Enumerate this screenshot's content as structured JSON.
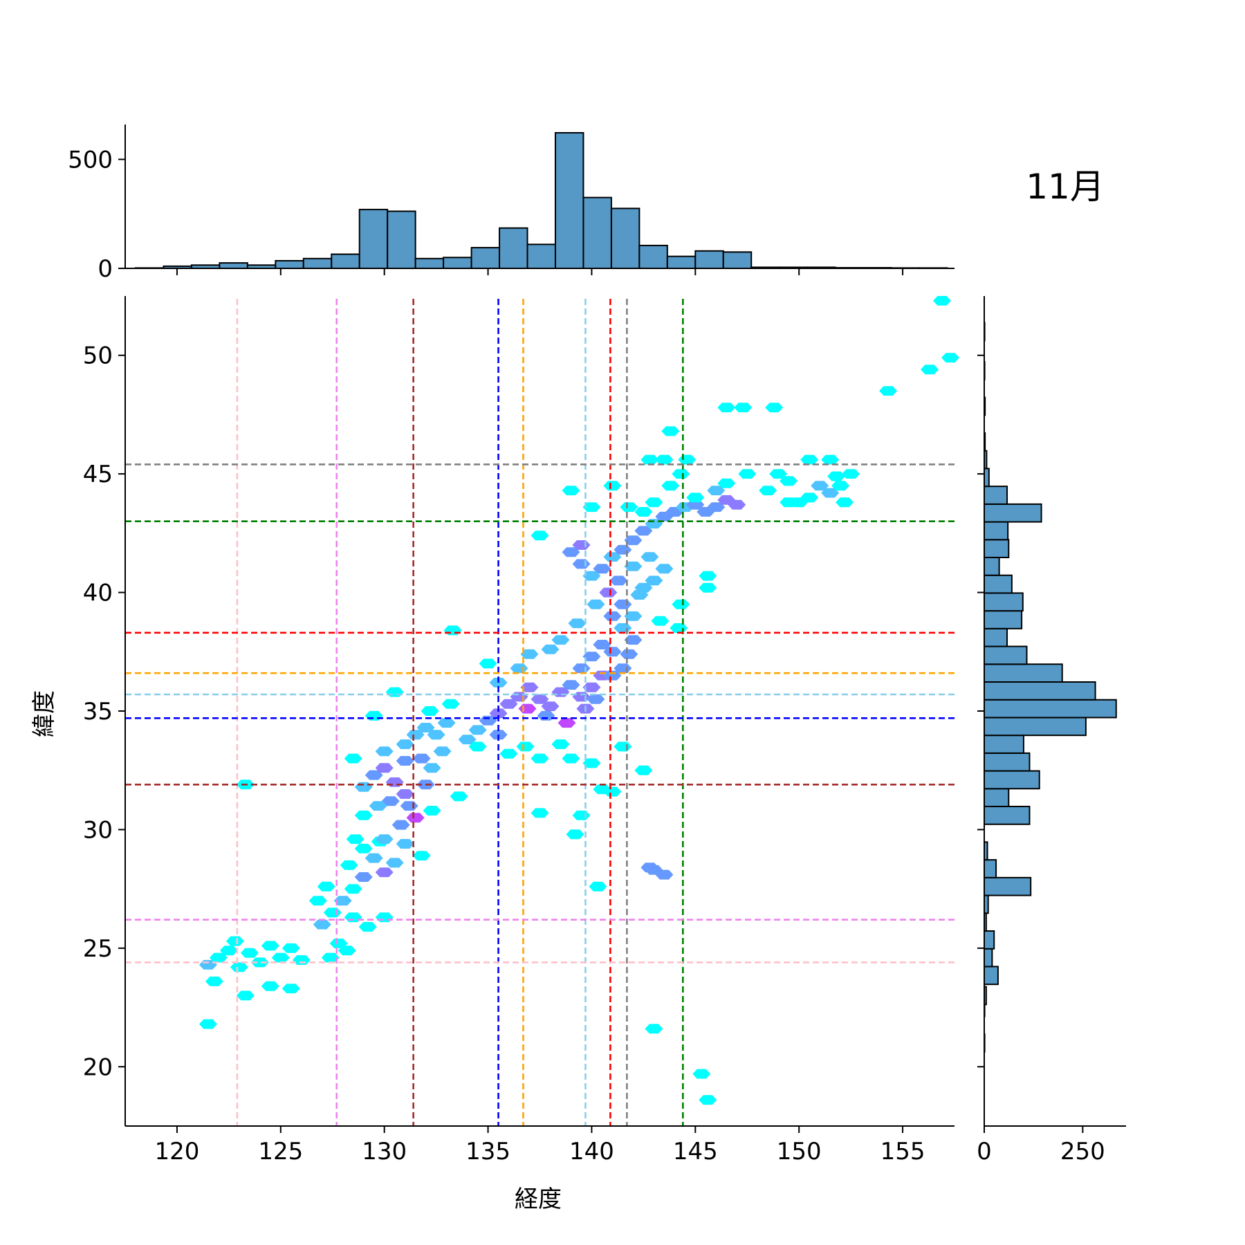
{
  "title": "11月",
  "chart_data": {
    "type": "scatter",
    "style": "hexbin joint plot with marginal histograms",
    "title": "11月",
    "xlabel": "経度",
    "ylabel": "緯度",
    "xlim": [
      117.5,
      157.5
    ],
    "ylim": [
      17.5,
      52.5
    ],
    "xticks": [
      "120",
      "125",
      "130",
      "135",
      "140",
      "145",
      "150",
      "155"
    ],
    "yticks": [
      "20",
      "25",
      "30",
      "35",
      "40",
      "45",
      "50"
    ],
    "top_hist": {
      "ticks": [
        "0",
        "500"
      ],
      "ylim": [
        0,
        660
      ],
      "bin_edges_start": 118.0,
      "bin_width": 1.35,
      "counts": [
        2,
        10,
        15,
        25,
        15,
        35,
        45,
        65,
        270,
        262,
        45,
        50,
        95,
        185,
        110,
        622,
        325,
        275,
        105,
        55,
        80,
        75,
        5,
        5,
        5,
        3,
        3,
        2,
        2
      ]
    },
    "right_hist": {
      "ticks": [
        "0",
        "250"
      ],
      "xlim": [
        0,
        360
      ],
      "bins": [
        {
          "lat": 21.0,
          "count": 1
        },
        {
          "lat": 22.5,
          "count": 1
        },
        {
          "lat": 23.0,
          "count": 5
        },
        {
          "lat": 23.85,
          "count": 35
        },
        {
          "lat": 24.6,
          "count": 20
        },
        {
          "lat": 25.35,
          "count": 25
        },
        {
          "lat": 26.1,
          "count": 5
        },
        {
          "lat": 26.85,
          "count": 10
        },
        {
          "lat": 27.6,
          "count": 118
        },
        {
          "lat": 28.35,
          "count": 30
        },
        {
          "lat": 29.1,
          "count": 8
        },
        {
          "lat": 30.6,
          "count": 115
        },
        {
          "lat": 31.35,
          "count": 62
        },
        {
          "lat": 32.1,
          "count": 140
        },
        {
          "lat": 32.85,
          "count": 115
        },
        {
          "lat": 33.6,
          "count": 100
        },
        {
          "lat": 34.35,
          "count": 258
        },
        {
          "lat": 35.1,
          "count": 335
        },
        {
          "lat": 35.85,
          "count": 282
        },
        {
          "lat": 36.6,
          "count": 198
        },
        {
          "lat": 37.35,
          "count": 108
        },
        {
          "lat": 38.1,
          "count": 58
        },
        {
          "lat": 38.85,
          "count": 95
        },
        {
          "lat": 39.6,
          "count": 98
        },
        {
          "lat": 40.35,
          "count": 70
        },
        {
          "lat": 41.1,
          "count": 38
        },
        {
          "lat": 41.85,
          "count": 62
        },
        {
          "lat": 42.6,
          "count": 60
        },
        {
          "lat": 43.35,
          "count": 145
        },
        {
          "lat": 44.1,
          "count": 58
        },
        {
          "lat": 44.85,
          "count": 12
        },
        {
          "lat": 45.6,
          "count": 6
        },
        {
          "lat": 46.35,
          "count": 2
        },
        {
          "lat": 47.85,
          "count": 2
        },
        {
          "lat": 49.35,
          "count": 1
        },
        {
          "lat": 51.0,
          "count": 1
        }
      ]
    },
    "vertical_reference_lines": [
      {
        "lon": 122.9,
        "color": "#ffc0cb"
      },
      {
        "lon": 127.7,
        "color": "#ee82ee"
      },
      {
        "lon": 131.4,
        "color": "#a52a2a"
      },
      {
        "lon": 135.5,
        "color": "#0000ff"
      },
      {
        "lon": 136.7,
        "color": "#ffa500"
      },
      {
        "lon": 139.7,
        "color": "#87ceeb"
      },
      {
        "lon": 140.9,
        "color": "#ff0000"
      },
      {
        "lon": 141.7,
        "color": "#808080"
      },
      {
        "lon": 144.4,
        "color": "#008000"
      }
    ],
    "horizontal_reference_lines": [
      {
        "lat": 45.4,
        "color": "#808080"
      },
      {
        "lat": 43.0,
        "color": "#008000"
      },
      {
        "lat": 38.3,
        "color": "#ff0000"
      },
      {
        "lat": 36.6,
        "color": "#ffa500"
      },
      {
        "lat": 35.7,
        "color": "#87ceeb"
      },
      {
        "lat": 34.7,
        "color": "#0000ff"
      },
      {
        "lat": 31.9,
        "color": "#a52a2a"
      },
      {
        "lat": 26.2,
        "color": "#ee82ee"
      },
      {
        "lat": 24.4,
        "color": "#ffc0cb"
      }
    ],
    "hex_cells": [
      [
        121.5,
        24.3,
        2
      ],
      [
        122.0,
        24.6,
        1
      ],
      [
        122.5,
        24.9,
        1
      ],
      [
        121.8,
        23.6,
        1
      ],
      [
        123.0,
        24.2,
        1
      ],
      [
        124.0,
        24.4,
        1
      ],
      [
        125.0,
        24.6,
        1
      ],
      [
        125.5,
        25.0,
        1
      ],
      [
        124.5,
        25.1,
        1
      ],
      [
        123.5,
        24.8,
        1
      ],
      [
        122.8,
        25.3,
        1
      ],
      [
        126.0,
        24.5,
        1
      ],
      [
        124.5,
        23.4,
        1
      ],
      [
        125.5,
        23.3,
        1
      ],
      [
        123.3,
        23.0,
        1
      ],
      [
        121.5,
        21.8,
        1
      ],
      [
        123.3,
        31.9,
        1
      ],
      [
        127.0,
        26.0,
        2
      ],
      [
        127.5,
        26.5,
        1
      ],
      [
        128.0,
        27.0,
        2
      ],
      [
        127.2,
        27.6,
        1
      ],
      [
        126.8,
        27.0,
        1
      ],
      [
        128.5,
        27.5,
        1
      ],
      [
        129.0,
        28.0,
        3
      ],
      [
        128.3,
        28.5,
        1
      ],
      [
        129.5,
        28.8,
        2
      ],
      [
        129.0,
        29.2,
        1
      ],
      [
        130.0,
        28.2,
        4
      ],
      [
        130.5,
        28.6,
        2
      ],
      [
        129.8,
        29.5,
        1
      ],
      [
        128.5,
        26.3,
        1
      ],
      [
        129.2,
        25.9,
        1
      ],
      [
        127.8,
        25.2,
        1
      ],
      [
        128.2,
        24.9,
        1
      ],
      [
        127.4,
        24.6,
        1
      ],
      [
        130.0,
        26.3,
        1
      ],
      [
        128.6,
        29.6,
        1
      ],
      [
        129.0,
        31.8,
        2
      ],
      [
        129.5,
        32.3,
        3
      ],
      [
        130.0,
        32.6,
        4
      ],
      [
        130.5,
        32.0,
        4
      ],
      [
        131.0,
        31.5,
        4
      ],
      [
        131.0,
        32.9,
        3
      ],
      [
        130.3,
        31.2,
        3
      ],
      [
        129.7,
        31.0,
        2
      ],
      [
        131.5,
        30.5,
        5
      ],
      [
        130.8,
        30.2,
        3
      ],
      [
        131.2,
        31.0,
        3
      ],
      [
        132.0,
        31.9,
        3
      ],
      [
        131.8,
        33.0,
        3
      ],
      [
        132.3,
        32.6,
        2
      ],
      [
        130.0,
        33.3,
        2
      ],
      [
        131.0,
        33.6,
        2
      ],
      [
        131.5,
        34.0,
        2
      ],
      [
        132.0,
        34.3,
        2
      ],
      [
        132.5,
        34.0,
        2
      ],
      [
        133.0,
        34.5,
        2
      ],
      [
        132.8,
        33.3,
        2
      ],
      [
        129.0,
        30.6,
        1
      ],
      [
        130.0,
        29.6,
        2
      ],
      [
        131.0,
        29.4,
        2
      ],
      [
        131.8,
        28.9,
        1
      ],
      [
        132.3,
        30.8,
        1
      ],
      [
        128.5,
        33.0,
        1
      ],
      [
        129.5,
        34.8,
        1
      ],
      [
        130.5,
        35.8,
        1
      ],
      [
        133.2,
        35.3,
        1
      ],
      [
        132.2,
        35.0,
        1
      ],
      [
        133.3,
        38.4,
        1
      ],
      [
        133.6,
        31.4,
        1
      ],
      [
        134.0,
        33.8,
        2
      ],
      [
        134.5,
        34.2,
        2
      ],
      [
        135.0,
        34.6,
        3
      ],
      [
        135.5,
        34.9,
        4
      ],
      [
        135.5,
        34.0,
        3
      ],
      [
        136.0,
        35.3,
        4
      ],
      [
        136.5,
        35.6,
        4
      ],
      [
        136.9,
        35.1,
        5
      ],
      [
        137.0,
        36.0,
        4
      ],
      [
        137.5,
        35.5,
        4
      ],
      [
        137.8,
        34.8,
        3
      ],
      [
        138.0,
        35.2,
        4
      ],
      [
        138.5,
        35.8,
        4
      ],
      [
        138.8,
        34.5,
        5
      ],
      [
        139.0,
        36.1,
        3
      ],
      [
        139.5,
        35.6,
        4
      ],
      [
        139.7,
        35.1,
        4
      ],
      [
        140.0,
        36.0,
        4
      ],
      [
        140.2,
        35.5,
        3
      ],
      [
        140.5,
        36.5,
        4
      ],
      [
        139.5,
        36.8,
        3
      ],
      [
        140.0,
        37.3,
        3
      ],
      [
        140.5,
        37.8,
        3
      ],
      [
        141.0,
        37.5,
        3
      ],
      [
        141.0,
        36.5,
        3
      ],
      [
        141.5,
        36.8,
        3
      ],
      [
        141.8,
        37.4,
        3
      ],
      [
        142.0,
        38.0,
        3
      ],
      [
        141.5,
        38.5,
        2
      ],
      [
        141.0,
        39.0,
        3
      ],
      [
        141.5,
        39.5,
        3
      ],
      [
        140.8,
        40.0,
        4
      ],
      [
        141.3,
        40.5,
        3
      ],
      [
        140.5,
        41.0,
        3
      ],
      [
        141.0,
        41.5,
        2
      ],
      [
        141.5,
        41.8,
        3
      ],
      [
        142.0,
        42.2,
        3
      ],
      [
        142.5,
        42.6,
        3
      ],
      [
        143.0,
        42.9,
        2
      ],
      [
        143.5,
        43.2,
        3
      ],
      [
        144.0,
        43.4,
        3
      ],
      [
        144.5,
        43.6,
        2
      ],
      [
        145.0,
        43.7,
        3
      ],
      [
        145.5,
        43.4,
        3
      ],
      [
        146.0,
        43.6,
        3
      ],
      [
        146.5,
        43.9,
        4
      ],
      [
        147.0,
        43.7,
        4
      ],
      [
        146.0,
        44.3,
        2
      ],
      [
        145.0,
        44.0,
        1
      ],
      [
        143.0,
        43.8,
        1
      ],
      [
        142.5,
        43.4,
        1
      ],
      [
        141.8,
        43.6,
        1
      ],
      [
        139.5,
        42.0,
        4
      ],
      [
        139.0,
        41.7,
        3
      ],
      [
        139.5,
        41.2,
        3
      ],
      [
        140.0,
        40.7,
        2
      ],
      [
        140.2,
        39.5,
        2
      ],
      [
        139.3,
        38.7,
        2
      ],
      [
        138.5,
        38.0,
        2
      ],
      [
        138.0,
        37.6,
        2
      ],
      [
        137.0,
        37.4,
        2
      ],
      [
        136.5,
        36.8,
        2
      ],
      [
        135.5,
        36.2,
        2
      ],
      [
        135.0,
        37.0,
        1
      ],
      [
        134.5,
        33.5,
        1
      ],
      [
        136.0,
        33.2,
        1
      ],
      [
        136.8,
        33.5,
        1
      ],
      [
        137.5,
        33.0,
        1
      ],
      [
        138.5,
        33.6,
        1
      ],
      [
        139.0,
        33.0,
        1
      ],
      [
        140.0,
        32.8,
        1
      ],
      [
        141.5,
        33.5,
        1
      ],
      [
        142.5,
        32.5,
        1
      ],
      [
        139.5,
        30.6,
        1
      ],
      [
        139.2,
        29.8,
        1
      ],
      [
        137.5,
        30.7,
        1
      ],
      [
        140.3,
        27.6,
        1
      ],
      [
        140.5,
        31.7,
        1
      ],
      [
        141.0,
        31.6,
        1
      ],
      [
        143.0,
        28.3,
        3
      ],
      [
        143.5,
        28.1,
        3
      ],
      [
        142.8,
        28.4,
        3
      ],
      [
        143.0,
        21.6,
        1
      ],
      [
        145.3,
        19.7,
        1
      ],
      [
        145.6,
        18.6,
        1
      ],
      [
        141.0,
        44.5,
        1
      ],
      [
        139.0,
        44.3,
        1
      ],
      [
        140.0,
        43.6,
        1
      ],
      [
        137.5,
        42.4,
        1
      ],
      [
        143.5,
        45.6,
        1
      ],
      [
        142.8,
        45.6,
        1
      ],
      [
        144.3,
        45.0,
        1
      ],
      [
        144.6,
        45.6,
        1
      ],
      [
        146.5,
        44.6,
        1
      ],
      [
        147.5,
        45.0,
        1
      ],
      [
        149.0,
        45.0,
        1
      ],
      [
        149.5,
        44.7,
        1
      ],
      [
        148.5,
        44.3,
        1
      ],
      [
        149.5,
        43.8,
        1
      ],
      [
        150.0,
        43.8,
        1
      ],
      [
        150.5,
        44.0,
        1
      ],
      [
        151.0,
        44.5,
        2
      ],
      [
        151.5,
        44.2,
        2
      ],
      [
        152.0,
        44.5,
        1
      ],
      [
        152.5,
        45.0,
        1
      ],
      [
        150.5,
        45.6,
        1
      ],
      [
        151.5,
        45.6,
        1
      ],
      [
        151.8,
        44.9,
        1
      ],
      [
        152.2,
        43.8,
        1
      ],
      [
        143.8,
        44.5,
        1
      ],
      [
        143.8,
        46.8,
        1
      ],
      [
        146.5,
        47.8,
        1
      ],
      [
        147.3,
        47.8,
        1
      ],
      [
        148.8,
        47.8,
        1
      ],
      [
        154.3,
        48.5,
        1
      ],
      [
        156.3,
        49.4,
        1
      ],
      [
        156.9,
        52.3,
        1
      ],
      [
        157.3,
        49.9,
        1
      ],
      [
        142.3,
        39.9,
        2
      ],
      [
        143.0,
        40.5,
        2
      ],
      [
        143.5,
        41.0,
        2
      ],
      [
        142.8,
        41.5,
        2
      ],
      [
        143.3,
        38.8,
        1
      ],
      [
        144.2,
        38.5,
        1
      ],
      [
        144.3,
        39.5,
        1
      ],
      [
        145.6,
        40.2,
        1
      ],
      [
        145.6,
        40.7,
        1
      ],
      [
        142.0,
        41.1,
        2
      ],
      [
        142.5,
        40.2,
        2
      ],
      [
        142.0,
        39.0,
        2
      ]
    ]
  }
}
